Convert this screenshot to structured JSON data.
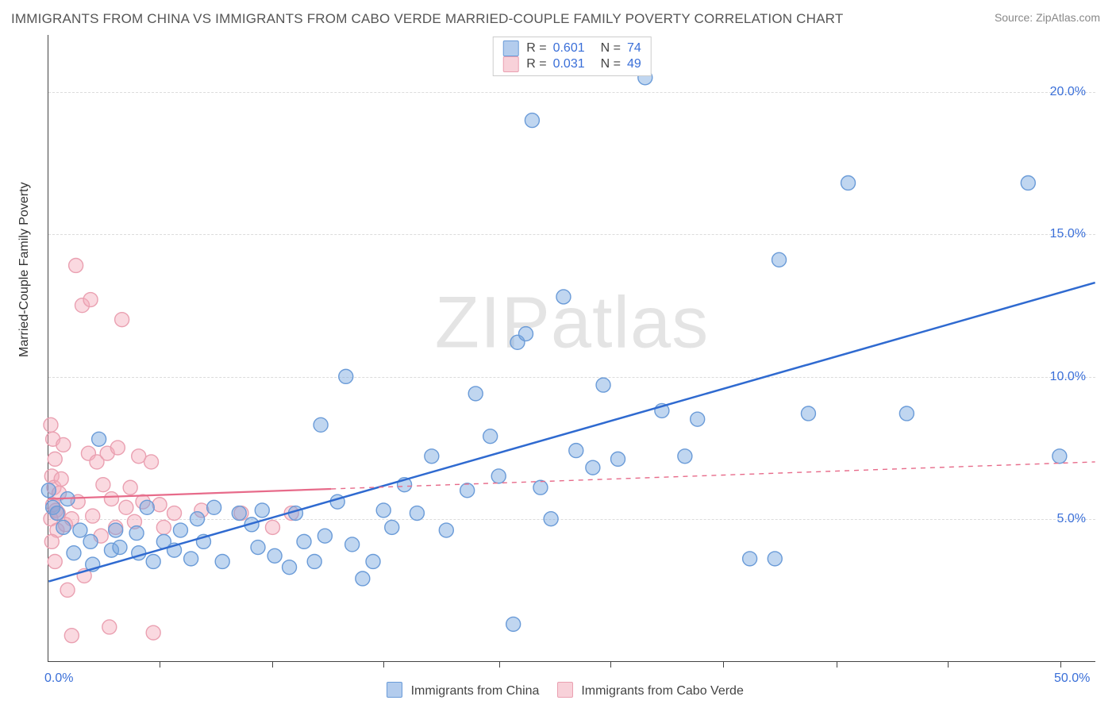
{
  "title": "IMMIGRANTS FROM CHINA VS IMMIGRANTS FROM CABO VERDE MARRIED-COUPLE FAMILY POVERTY CORRELATION CHART",
  "source_label": "Source:",
  "source_value": "ZipAtlas.com",
  "watermark": "ZIPatlas",
  "axes": {
    "ylabel": "Married-Couple Family Poverty",
    "xlim": [
      0,
      50
    ],
    "ylim": [
      0,
      22
    ],
    "ytick_values": [
      5,
      10,
      15,
      20
    ],
    "ytick_labels": [
      "5.0%",
      "10.0%",
      "15.0%",
      "20.0%"
    ],
    "xtick_positions": [
      5.3,
      10.7,
      16.0,
      21.5,
      26.8,
      32.2,
      37.6,
      42.9,
      48.3
    ],
    "xtick_labels": {
      "first": "0.0%",
      "last": "50.0%"
    },
    "grid_color": "#dcdcdc",
    "axis_color": "#444444",
    "tick_label_color": "#3a6fd8",
    "axis_label_color": "#333333",
    "axis_label_fontsize": 16,
    "tick_fontsize": 16,
    "title_fontsize": 17,
    "title_color": "#555555",
    "background_color": "#ffffff"
  },
  "series": {
    "china": {
      "label": "Immigrants from China",
      "R": "0.601",
      "N": "74",
      "marker_fill": "rgba(116,163,222,0.45)",
      "marker_stroke": "#6a9bd8",
      "marker_radius": 9,
      "line_color": "#2f6ad0",
      "line_width": 2.5,
      "line_dash": "none",
      "trend": {
        "x1": 0,
        "y1": 2.8,
        "x2": 50,
        "y2": 13.3
      },
      "points": [
        [
          0.0,
          6.0
        ],
        [
          0.2,
          5.4
        ],
        [
          0.4,
          5.2
        ],
        [
          0.7,
          4.7
        ],
        [
          0.9,
          5.7
        ],
        [
          1.2,
          3.8
        ],
        [
          1.5,
          4.6
        ],
        [
          2.0,
          4.2
        ],
        [
          2.1,
          3.4
        ],
        [
          2.4,
          7.8
        ],
        [
          3.0,
          3.9
        ],
        [
          3.2,
          4.6
        ],
        [
          3.4,
          4.0
        ],
        [
          4.2,
          4.5
        ],
        [
          4.3,
          3.8
        ],
        [
          4.7,
          5.4
        ],
        [
          5.0,
          3.5
        ],
        [
          5.5,
          4.2
        ],
        [
          6.0,
          3.9
        ],
        [
          6.3,
          4.6
        ],
        [
          6.8,
          3.6
        ],
        [
          7.1,
          5.0
        ],
        [
          7.4,
          4.2
        ],
        [
          7.9,
          5.4
        ],
        [
          8.3,
          3.5
        ],
        [
          9.1,
          5.2
        ],
        [
          9.7,
          4.8
        ],
        [
          10.0,
          4.0
        ],
        [
          10.2,
          5.3
        ],
        [
          10.8,
          3.7
        ],
        [
          11.5,
          3.3
        ],
        [
          11.8,
          5.2
        ],
        [
          12.2,
          4.2
        ],
        [
          12.7,
          3.5
        ],
        [
          13.0,
          8.3
        ],
        [
          13.2,
          4.4
        ],
        [
          13.8,
          5.6
        ],
        [
          14.2,
          10.0
        ],
        [
          14.5,
          4.1
        ],
        [
          15.0,
          2.9
        ],
        [
          15.5,
          3.5
        ],
        [
          16.0,
          5.3
        ],
        [
          16.4,
          4.7
        ],
        [
          17.0,
          6.2
        ],
        [
          17.6,
          5.2
        ],
        [
          18.3,
          7.2
        ],
        [
          19.0,
          4.6
        ],
        [
          20.0,
          6.0
        ],
        [
          20.4,
          9.4
        ],
        [
          21.1,
          7.9
        ],
        [
          21.5,
          6.5
        ],
        [
          22.2,
          1.3
        ],
        [
          22.4,
          11.2
        ],
        [
          22.8,
          11.5
        ],
        [
          23.1,
          19.0
        ],
        [
          23.5,
          6.1
        ],
        [
          24.0,
          5.0
        ],
        [
          24.6,
          12.8
        ],
        [
          25.2,
          7.4
        ],
        [
          26.0,
          6.8
        ],
        [
          26.5,
          9.7
        ],
        [
          27.2,
          7.1
        ],
        [
          28.5,
          20.5
        ],
        [
          29.3,
          8.8
        ],
        [
          30.4,
          7.2
        ],
        [
          31.0,
          8.5
        ],
        [
          33.5,
          3.6
        ],
        [
          34.7,
          3.6
        ],
        [
          34.9,
          14.1
        ],
        [
          36.3,
          8.7
        ],
        [
          38.2,
          16.8
        ],
        [
          41.0,
          8.7
        ],
        [
          46.8,
          16.8
        ],
        [
          48.3,
          7.2
        ]
      ]
    },
    "cabo_verde": {
      "label": "Immigrants from Cabo Verde",
      "R": "0.031",
      "N": "49",
      "marker_fill": "rgba(243,171,186,0.45)",
      "marker_stroke": "#eaa0b1",
      "marker_radius": 9,
      "line_color": "#e76b8a",
      "line_width": 2.2,
      "line_dash_solid_until_x": 13.5,
      "line_dash": "6,6",
      "trend": {
        "x1": 0,
        "y1": 5.7,
        "x2": 50,
        "y2": 7.0
      },
      "points": [
        [
          0.1,
          8.3
        ],
        [
          0.2,
          7.8
        ],
        [
          0.3,
          7.1
        ],
        [
          0.15,
          6.5
        ],
        [
          0.25,
          6.1
        ],
        [
          0.2,
          5.5
        ],
        [
          0.35,
          5.3
        ],
        [
          0.1,
          5.0
        ],
        [
          0.4,
          4.6
        ],
        [
          0.15,
          4.2
        ],
        [
          0.3,
          3.5
        ],
        [
          0.5,
          5.9
        ],
        [
          0.45,
          5.2
        ],
        [
          0.6,
          6.4
        ],
        [
          0.7,
          7.6
        ],
        [
          0.8,
          4.8
        ],
        [
          0.9,
          2.5
        ],
        [
          1.1,
          0.9
        ],
        [
          1.1,
          5.0
        ],
        [
          1.3,
          13.9
        ],
        [
          1.4,
          5.6
        ],
        [
          1.6,
          12.5
        ],
        [
          1.7,
          3.0
        ],
        [
          1.9,
          7.3
        ],
        [
          2.0,
          12.7
        ],
        [
          2.1,
          5.1
        ],
        [
          2.3,
          7.0
        ],
        [
          2.5,
          4.4
        ],
        [
          2.6,
          6.2
        ],
        [
          2.8,
          7.3
        ],
        [
          2.9,
          1.2
        ],
        [
          3.0,
          5.7
        ],
        [
          3.2,
          4.7
        ],
        [
          3.3,
          7.5
        ],
        [
          3.5,
          12.0
        ],
        [
          3.7,
          5.4
        ],
        [
          3.9,
          6.1
        ],
        [
          4.1,
          4.9
        ],
        [
          4.3,
          7.2
        ],
        [
          4.5,
          5.6
        ],
        [
          4.9,
          7.0
        ],
        [
          5.0,
          1.0
        ],
        [
          5.3,
          5.5
        ],
        [
          5.5,
          4.7
        ],
        [
          6.0,
          5.2
        ],
        [
          7.3,
          5.3
        ],
        [
          9.2,
          5.2
        ],
        [
          10.7,
          4.7
        ],
        [
          11.6,
          5.2
        ]
      ]
    }
  },
  "legend_top": {
    "R_label": "R =",
    "N_label": "N ="
  },
  "swatch_style": {
    "china": {
      "fill": "rgba(116,163,222,0.55)",
      "border": "#6a9bd8"
    },
    "cabo_verde": {
      "fill": "rgba(243,171,186,0.55)",
      "border": "#eaa0b1"
    }
  }
}
